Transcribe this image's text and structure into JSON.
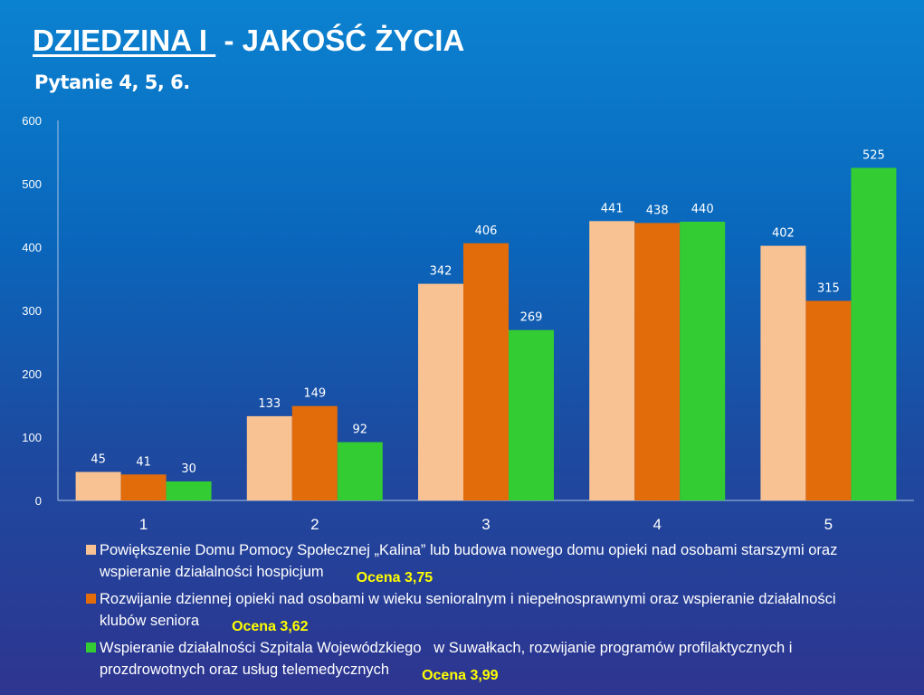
{
  "title": {
    "part1": "DZIEDZINA I ",
    "part2": " - JAKOŚĆ ŻYCIA"
  },
  "subtitle": "Pytanie 4, 5, 6.",
  "chart_data": {
    "type": "bar",
    "categories": [
      "1",
      "2",
      "3",
      "4",
      "5"
    ],
    "ylim": [
      0,
      600
    ],
    "yticks": [
      "0",
      "100",
      "200",
      "300",
      "400",
      "500",
      "600"
    ],
    "grid": false,
    "legend_position": "bottom",
    "series": [
      {
        "name": "Powiększenie Domu Pomocy Społecznej „Kalina” lub budowa nowego domu opieki nad osobami starszymi oraz wspieranie działalności hospicjum",
        "color": "#f9c292",
        "values": [
          45,
          133,
          342,
          441,
          402
        ],
        "score": "Ocena 3,75"
      },
      {
        "name": "Rozwijanie dziennej opieki nad osobami w wieku senioralnym i niepełnosprawnymi oraz wspieranie działalności klubów seniora",
        "color": "#e36c0a",
        "values": [
          41,
          149,
          406,
          438,
          315
        ],
        "score": "Ocena 3,62"
      },
      {
        "name": "Wspieranie działalności Szpitala Wojewódzkiego   w Suwałkach, rozwijanie programów profilaktycznych i prozdrowotnych oraz usług telemedycznych",
        "color": "#33cc33",
        "values": [
          30,
          92,
          269,
          440,
          525
        ],
        "score": "Ocena 3,99"
      }
    ]
  }
}
